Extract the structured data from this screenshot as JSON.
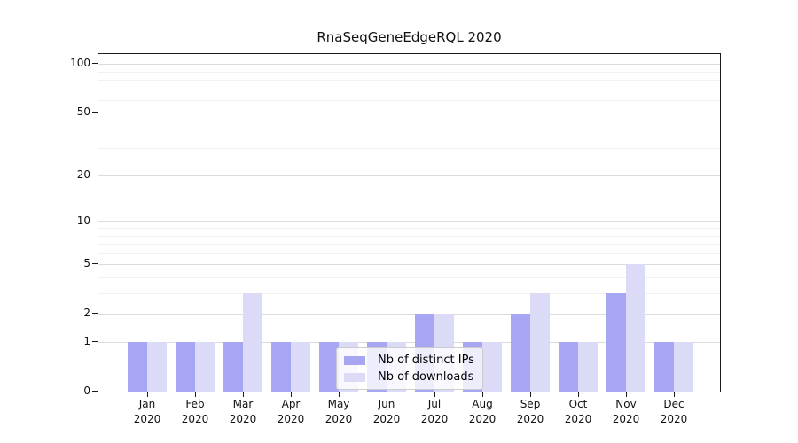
{
  "title": "RnaSeqGeneEdgeRQL 2020",
  "chart_data": {
    "type": "bar",
    "title": "RnaSeqGeneEdgeRQL 2020",
    "scale": "symlog",
    "xlabel": "",
    "ylabel": "",
    "categories": [
      "Jan 2020",
      "Feb 2020",
      "Mar 2020",
      "Apr 2020",
      "May 2020",
      "Jun 2020",
      "Jul 2020",
      "Aug 2020",
      "Sep 2020",
      "Oct 2020",
      "Nov 2020",
      "Dec 2020"
    ],
    "series": [
      {
        "name": "Nb of distinct IPs",
        "color": "#a6a6f2",
        "values": [
          1,
          1,
          1,
          1,
          1,
          1,
          2,
          1,
          2,
          1,
          3,
          1
        ]
      },
      {
        "name": "Nb of downloads",
        "color": "#dbdbf8",
        "values": [
          1,
          1,
          3,
          1,
          1,
          1,
          2,
          1,
          3,
          1,
          5,
          1
        ]
      }
    ],
    "y_major_ticks": [
      0,
      1,
      2,
      5,
      10,
      20,
      50,
      100
    ],
    "y_minor_ticks": [
      3,
      4,
      6,
      7,
      8,
      9,
      30,
      40,
      60,
      70,
      80,
      90
    ],
    "ylim": [
      0,
      115
    ],
    "grid": "on",
    "legend_position": "lower center"
  },
  "colors": {
    "bar_distinct_ips": "#a6a6f2",
    "bar_downloads": "#dbdbf8",
    "grid_major": "#dcdcdc",
    "grid_minor": "#f1f1f1",
    "axis": "#1a1a1a",
    "legend_border": "#cccccc",
    "background": "#ffffff"
  }
}
